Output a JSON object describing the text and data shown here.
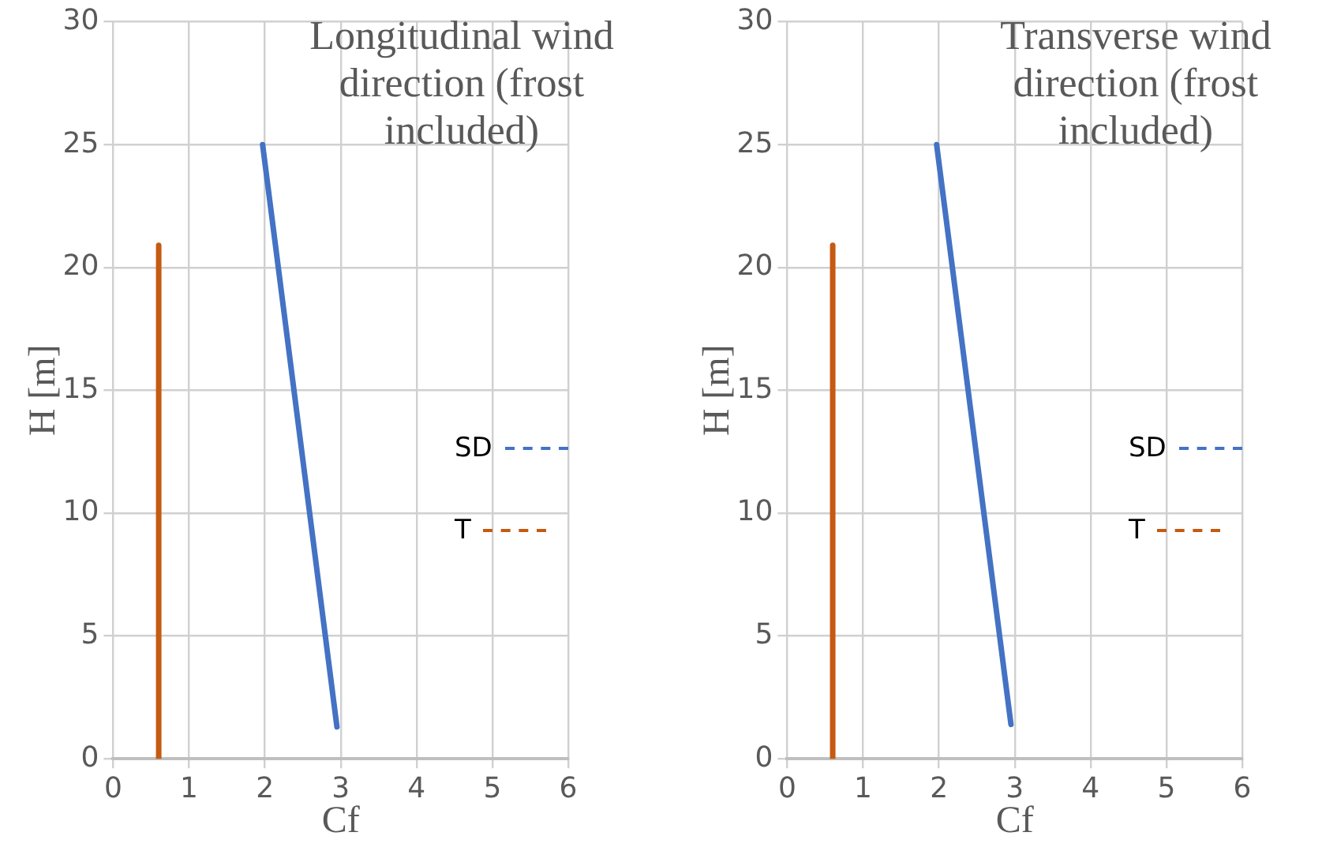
{
  "chart_data": [
    {
      "type": "line",
      "title": "Longitudinal wind direction (frost included)",
      "xlabel": "Cf",
      "ylabel": "H [m]",
      "xlim": [
        0,
        6
      ],
      "xticks": [
        0,
        1,
        2,
        3,
        4,
        5,
        6
      ],
      "ylim": [
        0,
        30
      ],
      "yticks": [
        0,
        5,
        10,
        15,
        20,
        25,
        30
      ],
      "grid": true,
      "legend": "right",
      "marker": "none",
      "line_style": "solid",
      "series": [
        {
          "name": "SD",
          "color": "#4472c4",
          "x": [
            1.97,
            2.95
          ],
          "values": [
            25,
            1.3
          ]
        },
        {
          "name": "T",
          "color": "#c55a11",
          "x": [
            0.6,
            0.6
          ],
          "values": [
            0,
            20.9
          ]
        }
      ]
    },
    {
      "type": "line",
      "title": "Transverse wind direction (frost included)",
      "xlabel": "Cf",
      "ylabel": "H [m]",
      "xlim": [
        0,
        6
      ],
      "xticks": [
        0,
        1,
        2,
        3,
        4,
        5,
        6
      ],
      "ylim": [
        0,
        30
      ],
      "yticks": [
        0,
        5,
        10,
        15,
        20,
        25,
        30
      ],
      "grid": true,
      "legend": "right",
      "marker": "none",
      "line_style": "solid",
      "series": [
        {
          "name": "SD",
          "color": "#4472c4",
          "x": [
            1.97,
            2.95
          ],
          "values": [
            25,
            1.4
          ]
        },
        {
          "name": "T",
          "color": "#c55a11",
          "x": [
            0.6,
            0.6
          ],
          "values": [
            0,
            20.9
          ]
        }
      ]
    }
  ]
}
